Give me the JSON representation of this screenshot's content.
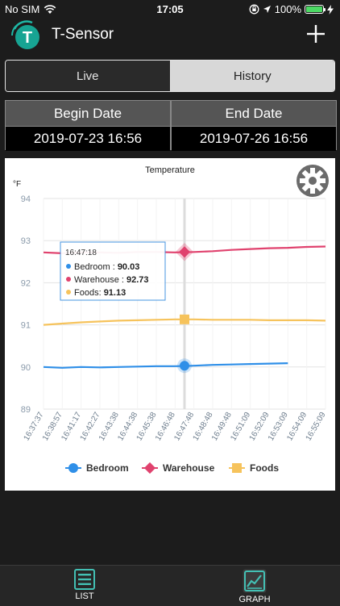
{
  "status": {
    "carrier": "No SIM",
    "time": "17:05",
    "battery": "100%"
  },
  "app": {
    "title": "T-Sensor",
    "logo_letter": "T"
  },
  "segments": {
    "live": "Live",
    "history": "History",
    "selected": "History"
  },
  "dates": {
    "begin_label": "Begin Date",
    "begin_value": "2019-07-23  16:56",
    "end_label": "End Date",
    "end_value": "2019-07-26  16:56"
  },
  "chart_data": {
    "type": "line",
    "title": "Temperature",
    "ylabel": "°F",
    "ylim": [
      89,
      94
    ],
    "yticks": [
      89,
      90,
      91,
      92,
      93,
      94
    ],
    "x": [
      "16:37:37",
      "16:38:57",
      "16:41:17",
      "16:42:27",
      "16:43:38",
      "16:44:38",
      "16:45:38",
      "16:46:48",
      "16:47:48",
      "16:48:48",
      "16:49:48",
      "16:51:09",
      "16:52:09",
      "16:53:09",
      "16:54:09",
      "16:55:09"
    ],
    "series": [
      {
        "name": "Bedroom",
        "color": "#2f8fe8",
        "marker": "circle",
        "values": [
          90.0,
          89.98,
          90.0,
          89.99,
          90.0,
          90.01,
          90.02,
          90.02,
          90.03,
          90.05,
          90.06,
          90.07,
          90.08,
          90.09,
          null,
          null
        ]
      },
      {
        "name": "Warehouse",
        "color": "#e0426e",
        "marker": "diamond",
        "values": [
          92.72,
          92.7,
          92.72,
          92.72,
          92.71,
          92.73,
          92.73,
          92.72,
          92.73,
          92.75,
          92.78,
          92.8,
          92.82,
          92.83,
          92.85,
          92.86
        ]
      },
      {
        "name": "Foods",
        "color": "#f6c35c",
        "marker": "square",
        "values": [
          91.0,
          91.03,
          91.06,
          91.08,
          91.1,
          91.11,
          91.12,
          91.13,
          91.13,
          91.12,
          91.12,
          91.12,
          91.11,
          91.11,
          91.11,
          91.1
        ]
      }
    ],
    "tooltip": {
      "time": "16:47:18",
      "rows": [
        {
          "label": "Bedroom : ",
          "value": "90.03",
          "color": "#2f8fe8"
        },
        {
          "label": "Warehouse : ",
          "value": "92.73",
          "color": "#e0426e"
        },
        {
          "label": "Foods: ",
          "value": "91.13",
          "color": "#f6c35c"
        }
      ]
    },
    "crosshair_x": "16:47:18",
    "grid": true,
    "legend_position": "bottom"
  },
  "tabs": {
    "list": "LIST",
    "graph": "GRAPH",
    "selected": "GRAPH"
  },
  "icons": {
    "wifi": "wifi-icon",
    "lock": "orientation-lock-icon",
    "location": "location-icon",
    "charging": "charging-icon",
    "gear": "gear-icon",
    "plus": "plus-icon",
    "list": "list-icon",
    "graph": "graph-icon"
  }
}
